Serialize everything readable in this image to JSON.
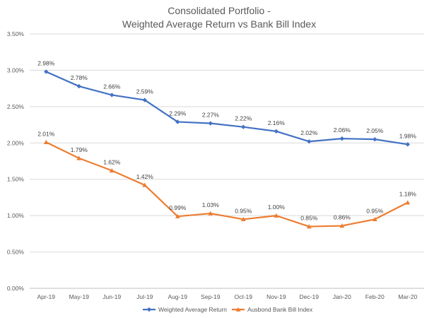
{
  "chart_data": {
    "type": "line",
    "title": "Consolidated Portfolio -",
    "subtitle": "Weighted Average Return vs Bank Bill Index",
    "categories": [
      "Apr-19",
      "May-19",
      "Jun-19",
      "Jul-19",
      "Aug-19",
      "Sep-19",
      "Oct-19",
      "Nov-19",
      "Dec-19",
      "Jan-20",
      "Feb-20",
      "Mar-20"
    ],
    "ylim": [
      0,
      3.5
    ],
    "yticks": [
      "0.00%",
      "0.50%",
      "1.00%",
      "1.50%",
      "2.00%",
      "2.50%",
      "3.00%",
      "3.50%"
    ],
    "ytick_values": [
      0,
      0.5,
      1.0,
      1.5,
      2.0,
      2.5,
      3.0,
      3.5
    ],
    "grid": true,
    "legend_position": "bottom",
    "series": [
      {
        "name": "Weighted Average Return",
        "color": "#4472c4",
        "marker": "diamond",
        "values": [
          2.98,
          2.78,
          2.66,
          2.59,
          2.29,
          2.27,
          2.22,
          2.16,
          2.02,
          2.06,
          2.05,
          1.98
        ],
        "labels": [
          "2.98%",
          "2.78%",
          "2.66%",
          "2.59%",
          "2.29%",
          "2.27%",
          "2.22%",
          "2.16%",
          "2.02%",
          "2.06%",
          "2.05%",
          "1.98%"
        ]
      },
      {
        "name": "Ausbond Bank Bill Index",
        "color": "#ed7d31",
        "marker": "triangle",
        "values": [
          2.01,
          1.79,
          1.62,
          1.42,
          0.99,
          1.03,
          0.95,
          1.0,
          0.85,
          0.86,
          0.95,
          1.18
        ],
        "labels": [
          "2.01%",
          "1.79%",
          "1.62%",
          "1.42%",
          "0.99%",
          "1.03%",
          "0.95%",
          "1.00%",
          "0.85%",
          "0.86%",
          "0.95%",
          "1.18%"
        ]
      }
    ]
  }
}
